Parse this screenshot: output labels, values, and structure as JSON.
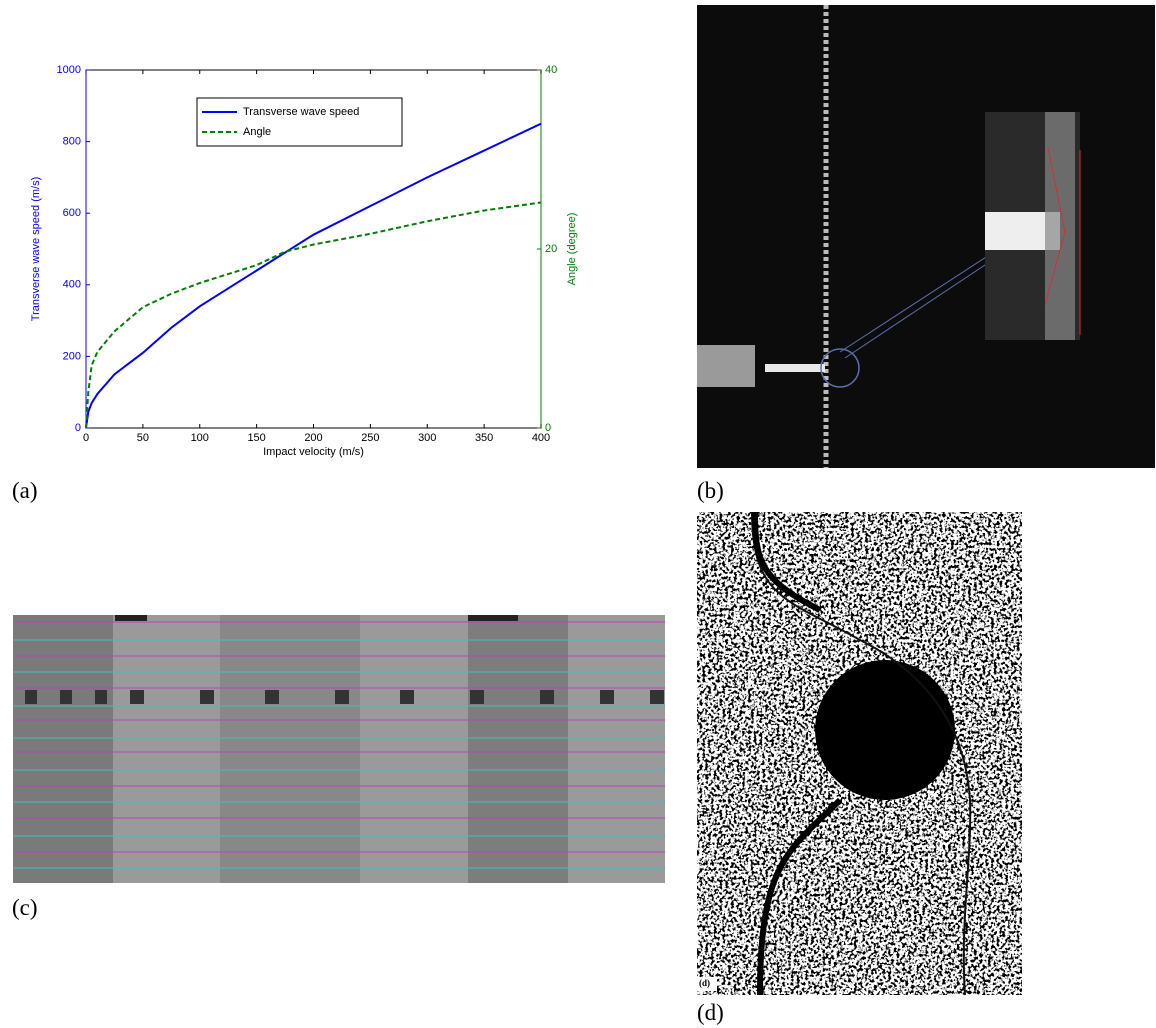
{
  "chart_data": {
    "type": "line",
    "x_label": "Impact velocity (m/s)",
    "y_label": "Transverse wave speed (m/s)",
    "y2_label": "Angle (degree)",
    "x": [
      0,
      2,
      5,
      10,
      25,
      50,
      75,
      100,
      150,
      175,
      200,
      250,
      300,
      350,
      400
    ],
    "series": [
      {
        "name": "Transverse wave speed",
        "color": "#0000ff",
        "values": [
          0,
          45,
          70,
          95,
          150,
          210,
          280,
          340,
          440,
          490,
          540,
          620,
          700,
          775,
          850
        ]
      },
      {
        "name": "Angle",
        "color": "#008000",
        "axis": "y2",
        "dashed": true,
        "values": [
          0,
          4,
          7,
          8.5,
          10.8,
          13.5,
          15,
          16.2,
          18.2,
          19.7,
          20.5,
          21.7,
          23.1,
          24.3,
          25.2
        ]
      }
    ],
    "xlim": [
      0,
      400
    ],
    "xticks": [
      0,
      50,
      100,
      150,
      200,
      250,
      300,
      350,
      400
    ],
    "ylim": [
      0,
      1000
    ],
    "yticks": [
      0,
      200,
      400,
      600,
      800,
      1000
    ],
    "y2lim": [
      0,
      40
    ],
    "y2ticks": [
      0,
      20,
      40
    ],
    "legend": "top-center"
  },
  "panel_labels": [
    "(a)",
    "(b)",
    "(c)",
    "(d)"
  ],
  "image_d_corner_label": "(d)"
}
